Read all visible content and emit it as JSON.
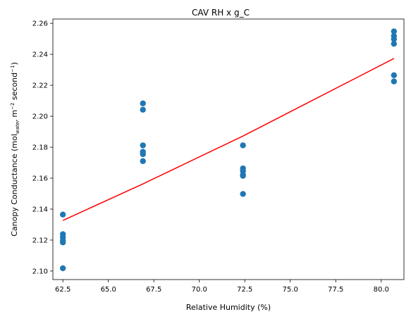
{
  "chart_data": {
    "type": "scatter",
    "title": "CAV RH x g_C",
    "xlabel": "Relative Humidity (%)",
    "ylabel": {
      "base": "Canopy Conductance (mol",
      "sub": "water",
      "mid": " m",
      "sup1": "−2",
      "mid2": " second",
      "sup2": "−1",
      "end": ")"
    },
    "xlim": [
      61.95,
      81.25
    ],
    "ylim": [
      2.0945,
      2.2628
    ],
    "x_ticks": [
      62.5,
      65.0,
      67.5,
      70.0,
      72.5,
      75.0,
      77.5,
      80.0
    ],
    "x_tick_labels": [
      "62.5",
      "65.0",
      "67.5",
      "70.0",
      "72.5",
      "75.0",
      "77.5",
      "80.0"
    ],
    "y_ticks": [
      2.1,
      2.12,
      2.14,
      2.16,
      2.18,
      2.2,
      2.22,
      2.24,
      2.26
    ],
    "y_tick_labels": [
      "2.10",
      "2.12",
      "2.14",
      "2.16",
      "2.18",
      "2.20",
      "2.22",
      "2.24",
      "2.26"
    ],
    "grid": false,
    "series": [
      {
        "kind": "points",
        "color": "#1f77b4",
        "points": [
          [
            62.5,
            2.1365
          ],
          [
            62.5,
            2.1238
          ],
          [
            62.5,
            2.1218
          ],
          [
            62.5,
            2.1198
          ],
          [
            62.5,
            2.1185
          ],
          [
            62.5,
            2.1018
          ],
          [
            66.9,
            2.2083
          ],
          [
            66.9,
            2.2042
          ],
          [
            66.9,
            2.1812
          ],
          [
            66.9,
            2.177
          ],
          [
            66.9,
            2.1755
          ],
          [
            66.9,
            2.171
          ],
          [
            72.4,
            2.1812
          ],
          [
            72.4,
            2.1663
          ],
          [
            72.4,
            2.1645
          ],
          [
            72.4,
            2.1622
          ],
          [
            72.4,
            2.1615
          ],
          [
            72.4,
            2.1498
          ],
          [
            80.7,
            2.2548
          ],
          [
            80.7,
            2.2518
          ],
          [
            80.7,
            2.2498
          ],
          [
            80.7,
            2.2468
          ],
          [
            80.7,
            2.2265
          ],
          [
            80.7,
            2.2225
          ]
        ]
      },
      {
        "kind": "fit-line",
        "color": "#ff0000",
        "points": [
          [
            62.5,
            2.1327
          ],
          [
            66.9,
            2.1563
          ],
          [
            72.4,
            2.1872
          ],
          [
            80.7,
            2.2373
          ]
        ]
      }
    ]
  }
}
